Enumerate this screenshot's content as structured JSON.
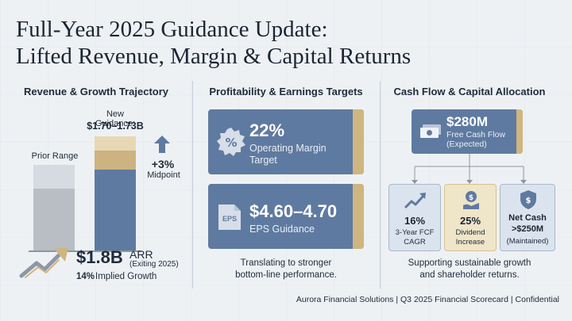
{
  "title": {
    "line1": "Full-Year 2025 Guidance Update:",
    "line2": "Lifted Revenue, Margin & Capital Returns"
  },
  "revenue": {
    "heading": "Revenue & Growth Trajectory",
    "new_guidance_label": "New Guidance:",
    "new_guidance_value": "$1.70–1.73B",
    "prior_label": "Prior Range",
    "midpoint_value": "+3%",
    "midpoint_label": "Midpoint",
    "arr_value": "$1.8B",
    "arr_label": "ARR",
    "arr_note": "(Exiting 2025)",
    "growth_value": "14%",
    "growth_label": "Implied Growth"
  },
  "profitability": {
    "heading": "Profitability & Earnings Targets",
    "margin_value": "22%",
    "margin_label_1": "Operating Margin",
    "margin_label_2": "Target",
    "eps_badge": "EPS",
    "eps_value": "$4.60–4.70",
    "eps_label": "EPS Guidance",
    "caption_1": "Translating to stronger",
    "caption_2": "bottom-line performance."
  },
  "cashflow": {
    "heading": "Cash Flow & Capital Allocation",
    "fcf_value": "$280M",
    "fcf_label_1": "Free Cash Flow",
    "fcf_label_2": "(Expected)",
    "cagr_value": "16%",
    "cagr_label_1": "3-Year FCF",
    "cagr_label_2": "CAGR",
    "dividend_value": "25%",
    "dividend_label_1": "Dividend",
    "dividend_label_2": "Increase",
    "netcash_label": "Net Cash",
    "netcash_value": ">$250M",
    "netcash_note": "(Maintained)",
    "caption_1": "Supporting sustainable growth",
    "caption_2": "and shareholder returns."
  },
  "footer": "Aurora Financial Solutions | Q3 2025 Financial Scorecard | Confidential",
  "colors": {
    "navy_card": "#5f7aa0",
    "gold_accent": "#cfb57f",
    "background": "#eef1f4",
    "text": "#1f2a3a"
  }
}
